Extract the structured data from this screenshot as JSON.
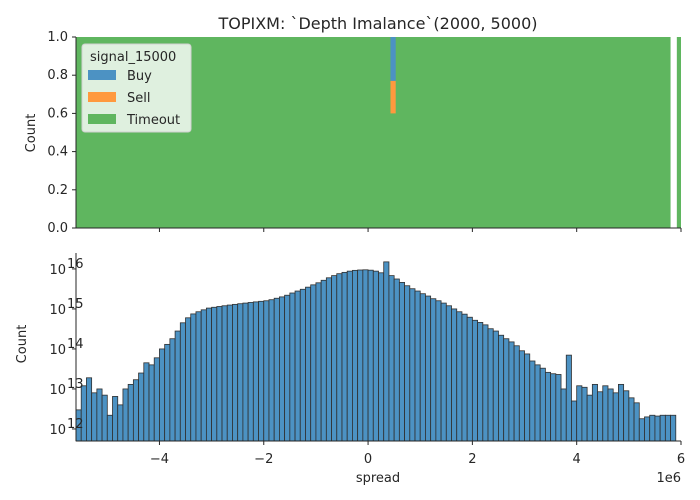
{
  "chart_data": [
    {
      "type": "bar",
      "title": "TOPIXM: `Depth Imalance`(2000, 5000)",
      "xlabel": "",
      "ylabel": "Count",
      "xlim": [
        -5.6,
        6.0
      ],
      "ylim": [
        0,
        1.0
      ],
      "grid": false,
      "legend_placement": "top-left",
      "legend_title": "signal_15000",
      "legend": [
        {
          "name": "Buy",
          "color": "#4c92c3"
        },
        {
          "name": "Sell",
          "color": "#ff993e"
        },
        {
          "name": "Timeout",
          "color": "#5fb65f"
        }
      ],
      "yticks": [
        0.0,
        0.2,
        0.4,
        0.6,
        0.8,
        1.0
      ],
      "ytick_labels": [
        "0.0",
        "0.2",
        "0.4",
        "0.6",
        "0.8",
        "1.0"
      ],
      "bars": [
        {
          "label": "Timeout",
          "x0": -5.6,
          "x1": 5.8,
          "y0": 0,
          "y1": 1.0,
          "color": "#5fb65f"
        },
        {
          "label": "Timeout",
          "x0": 5.92,
          "x1": 6.0,
          "y0": 0,
          "y1": 1.0,
          "color": "#5fb65f"
        },
        {
          "label": "Buy",
          "x0": 0.43,
          "x1": 0.53,
          "y0": 0.77,
          "y1": 1.0,
          "color": "#4c92c3"
        },
        {
          "label": "Sell",
          "x0": 0.43,
          "x1": 0.53,
          "y0": 0.6,
          "y1": 0.77,
          "color": "#ff993e"
        }
      ]
    },
    {
      "type": "bar",
      "xlabel": "spread",
      "ylabel": "Count",
      "xlim": [
        -5.6,
        6.0
      ],
      "ylim": [
        500000000000.0,
        2.5e+16
      ],
      "yscale": "log",
      "grid": false,
      "x_offset_text": "1e6",
      "xticks": [
        -4,
        -2,
        0,
        2,
        4,
        6
      ],
      "xtick_labels": [
        "−4",
        "−2",
        "0",
        "2",
        "4",
        "6"
      ],
      "ytick_labels": [
        "10",
        "10",
        "10",
        "10",
        "10"
      ],
      "ytick_exponents": [
        "12",
        "13",
        "14",
        "15",
        "16"
      ],
      "ytick_values": [
        1000000000000.0,
        10000000000000.0,
        100000000000000.0,
        1000000000000000.0,
        1e+16
      ],
      "bar_color": "#4c92c3",
      "bar_edge_color": "#2f2f2f",
      "bin_width": 0.1,
      "x_bins_start": [
        -5.6,
        -5.5,
        -5.4,
        -5.3,
        -5.2,
        -5.1,
        -5.0,
        -4.9,
        -4.8,
        -4.7,
        -4.6,
        -4.5,
        -4.4,
        -4.3,
        -4.2,
        -4.1,
        -4.0,
        -3.9,
        -3.8,
        -3.7,
        -3.6,
        -3.5,
        -3.4,
        -3.3,
        -3.2,
        -3.1,
        -3.0,
        -2.9,
        -2.8,
        -2.7,
        -2.6,
        -2.5,
        -2.4,
        -2.3,
        -2.2,
        -2.1,
        -2.0,
        -1.9,
        -1.8,
        -1.7,
        -1.6,
        -1.5,
        -1.4,
        -1.3,
        -1.2,
        -1.1,
        -1.0,
        -0.9,
        -0.8,
        -0.7,
        -0.6,
        -0.5,
        -0.4,
        -0.3,
        -0.2,
        -0.1,
        0.0,
        0.1,
        0.2,
        0.3,
        0.4,
        0.5,
        0.6,
        0.7,
        0.8,
        0.9,
        1.0,
        1.1,
        1.2,
        1.3,
        1.4,
        1.5,
        1.6,
        1.7,
        1.8,
        1.9,
        2.0,
        2.1,
        2.2,
        2.3,
        2.4,
        2.5,
        2.6,
        2.7,
        2.8,
        2.9,
        3.0,
        3.1,
        3.2,
        3.3,
        3.4,
        3.5,
        3.6,
        3.7,
        3.8,
        3.9,
        4.0,
        4.1,
        4.2,
        4.3,
        4.4,
        4.5,
        4.6,
        4.7,
        4.8,
        4.9,
        5.0,
        5.1,
        5.2,
        5.3,
        5.4,
        5.5,
        5.6,
        5.7,
        5.8
      ],
      "values": [
        3000000000000.0,
        12000000000000.0,
        19000000000000.0,
        8000000000000.0,
        10000000000000.0,
        7000000000000.0,
        2200000000000.0,
        6500000000000.0,
        4000000000000.0,
        10000000000000.0,
        13000000000000.0,
        17000000000000.0,
        25000000000000.0,
        45000000000000.0,
        40000000000000.0,
        60000000000000.0,
        100000000000000.0,
        130000000000000.0,
        180000000000000.0,
        280000000000000.0,
        450000000000000.0,
        600000000000000.0,
        750000000000000.0,
        850000000000000.0,
        950000000000000.0,
        1050000000000000.0,
        1100000000000000.0,
        1150000000000000.0,
        1200000000000000.0,
        1250000000000000.0,
        1300000000000000.0,
        1350000000000000.0,
        1400000000000000.0,
        1450000000000000.0,
        1500000000000000.0,
        1550000000000000.0,
        1600000000000000.0,
        1700000000000000.0,
        1850000000000000.0,
        2000000000000000.0,
        2200000000000000.0,
        2500000000000000.0,
        2800000000000000.0,
        3100000000000000.0,
        3500000000000000.0,
        4000000000000000.0,
        4500000000000000.0,
        5200000000000000.0,
        6000000000000000.0,
        6800000000000000.0,
        7600000000000000.0,
        8200000000000000.0,
        8800000000000000.0,
        9200000000000000.0,
        9400000000000000.0,
        9500000000000000.0,
        9300000000000000.0,
        8800000000000000.0,
        8000000000000000.0,
        1.5e+16,
        6800000000000000.0,
        5600000000000000.0,
        4600000000000000.0,
        3800000000000000.0,
        3200000000000000.0,
        2800000000000000.0,
        2400000000000000.0,
        2100000000000000.0,
        1800000000000000.0,
        1600000000000000.0,
        1400000000000000.0,
        1200000000000000.0,
        1000000000000000.0,
        850000000000000.0,
        740000000000000.0,
        620000000000000.0,
        520000000000000.0,
        460000000000000.0,
        400000000000000.0,
        320000000000000.0,
        280000000000000.0,
        220000000000000.0,
        180000000000000.0,
        150000000000000.0,
        120000000000000.0,
        90000000000000.0,
        75000000000000.0,
        50000000000000.0,
        40000000000000.0,
        33000000000000.0,
        26000000000000.0,
        24000000000000.0,
        23000000000000.0,
        10000000000000.0,
        70000000000000.0,
        5000000000000.0,
        12000000000000.0,
        11000000000000.0,
        7000000000000.0,
        13000000000000.0,
        8500000000000.0,
        12000000000000.0,
        10000000000000.0,
        8000000000000.0,
        13000000000000.0,
        9000000000000.0,
        6000000000000.0,
        4500000000000.0,
        1800000000000.0,
        2000000000000.0,
        2200000000000.0,
        2100000000000.0,
        2200000000000.0,
        2200000000000.0,
        2200000000000.0
      ]
    }
  ]
}
